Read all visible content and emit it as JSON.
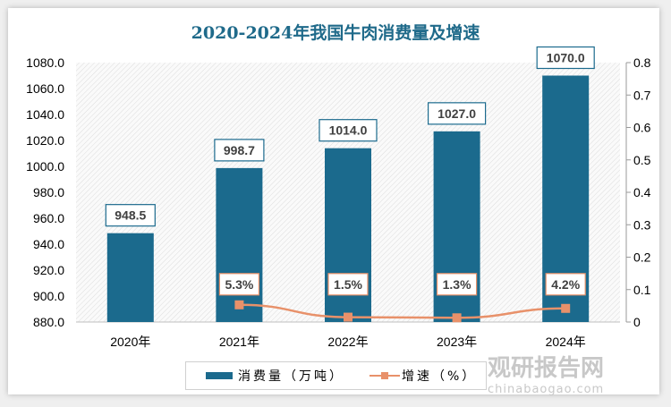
{
  "chart_data": {
    "type": "bar+line",
    "title": "2020-2024年我国牛肉消费量及增速",
    "categories": [
      "2020年",
      "2021年",
      "2022年",
      "2023年",
      "2024年"
    ],
    "series": [
      {
        "name": "消费量（万吨）",
        "type": "bar",
        "axis": "left",
        "values": [
          948.5,
          998.7,
          1014.0,
          1027.0,
          1070.0
        ],
        "labels": [
          "948.5",
          "998.7",
          "1014.0",
          "1027.0",
          "1070.0"
        ],
        "color": "#1b6a8d"
      },
      {
        "name": "增速（%）",
        "type": "line",
        "axis": "right",
        "values": [
          null,
          0.053,
          0.015,
          0.013,
          0.042
        ],
        "labels": [
          null,
          "5.3%",
          "1.5%",
          "1.3%",
          "4.2%"
        ],
        "color": "#e8916a"
      }
    ],
    "y_left": {
      "range": [
        880,
        1080
      ],
      "ticks": [
        "880.0",
        "900.0",
        "920.0",
        "940.0",
        "960.0",
        "980.0",
        "1000.0",
        "1020.0",
        "1040.0",
        "1060.0",
        "1080.0"
      ]
    },
    "y_right": {
      "range": [
        0,
        0.8
      ],
      "ticks": [
        "0",
        "0.1",
        "0.2",
        "0.3",
        "0.4",
        "0.5",
        "0.6",
        "0.7",
        "0.8"
      ]
    },
    "legend": "bottom",
    "grid": false
  },
  "watermark": {
    "cn": "观研报告网",
    "en": "chinabaogao.com"
  }
}
